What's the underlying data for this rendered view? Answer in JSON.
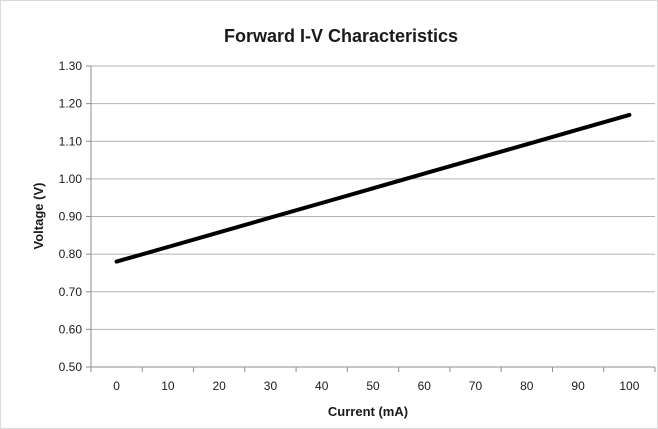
{
  "chart_data": {
    "type": "line",
    "title": "Forward I-V Characteristics",
    "xlabel": "Current (mA)",
    "ylabel": "Voltage (V)",
    "xlim": [
      0,
      100
    ],
    "ylim": [
      0.5,
      1.3
    ],
    "x_ticks": [
      "0",
      "10",
      "20",
      "30",
      "40",
      "50",
      "60",
      "70",
      "80",
      "90",
      "100"
    ],
    "y_ticks": [
      "0.50",
      "0.60",
      "0.70",
      "0.80",
      "0.90",
      "1.00",
      "1.10",
      "1.20",
      "1.30"
    ],
    "grid": true,
    "legend": "none",
    "series": [
      {
        "color": "#000000",
        "x": [
          0,
          10,
          20,
          30,
          40,
          50,
          60,
          70,
          80,
          90,
          100
        ],
        "y": [
          0.78,
          0.819,
          0.858,
          0.897,
          0.936,
          0.975,
          1.014,
          1.053,
          1.092,
          1.131,
          1.17
        ]
      }
    ]
  }
}
